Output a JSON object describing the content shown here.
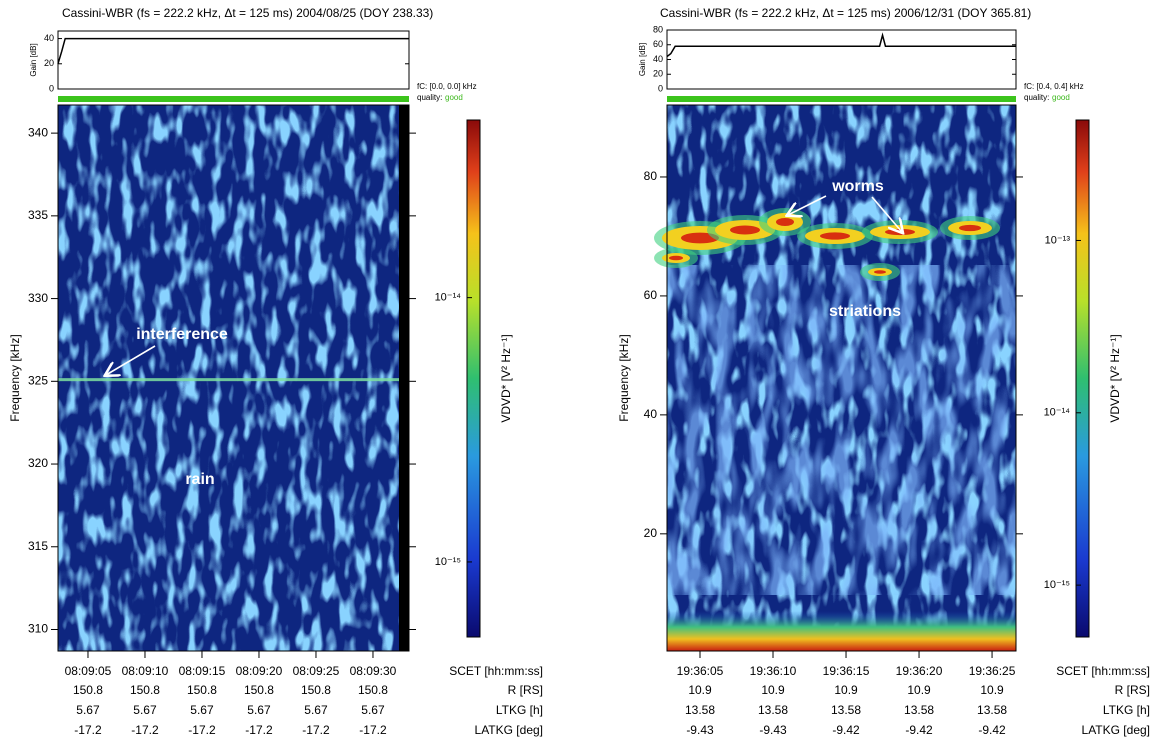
{
  "chart_data": [
    {
      "type": "spectrogram",
      "title": "Cassini-WBR (fs = 222.2 kHz, Δt = 125 ms)  2004/08/25 (DOY 238.33)",
      "gain": {
        "ylabel": "Gain [dB]",
        "ylim": [
          0,
          46
        ],
        "yticks": [
          0,
          20,
          40
        ],
        "x": [
          2.37,
          2.7,
          3.0,
          33.16
        ],
        "values": [
          20,
          30,
          40,
          40
        ]
      },
      "fc": "fC: [0.0, 0.0] kHz",
      "quality_label": "quality:",
      "quality": "good",
      "ylabel": "Frequency [kHz]",
      "ylim": [
        308.7,
        341.7
      ],
      "yticks": [
        310,
        315,
        320,
        325,
        330,
        335,
        340
      ],
      "xlabel": "SCET [hh:mm:ss]",
      "xlim": [
        2.37,
        33.16
      ],
      "xticks": [
        {
          "value": 5,
          "label": "08:09:05"
        },
        {
          "value": 10,
          "label": "08:09:10"
        },
        {
          "value": 15,
          "label": "08:09:15"
        },
        {
          "value": 20,
          "label": "08:09:20"
        },
        {
          "value": 25,
          "label": "08:09:25"
        },
        {
          "value": 30,
          "label": "08:09:30"
        }
      ],
      "ephemeris": [
        {
          "label": "R [RS]",
          "values": [
            150.8,
            150.8,
            150.8,
            150.8,
            150.8,
            150.8
          ]
        },
        {
          "label": "LTKG [h]",
          "values": [
            5.67,
            5.67,
            5.67,
            5.67,
            5.67,
            5.67
          ]
        },
        {
          "label": "LATKG [deg]",
          "values": [
            -17.2,
            -17.2,
            -17.2,
            -17.2,
            -17.2,
            -17.2
          ]
        }
      ],
      "colorbar": {
        "label": "VDVD* [V² Hz⁻¹]",
        "log": true,
        "lim": [
          5.2e-16,
          4.7e-14
        ],
        "ticks": [
          {
            "value": 1e-15,
            "label": "10⁻¹⁵"
          },
          {
            "value": 1e-14,
            "label": "10⁻¹⁴"
          }
        ]
      },
      "annotations": [
        {
          "text": "interference"
        },
        {
          "text": "rain"
        }
      ]
    },
    {
      "type": "spectrogram",
      "title": "Cassini-WBR (fs = 222.2 kHz, Δt = 125 ms)  2006/12/31 (DOY 365.81)",
      "gain": {
        "ylabel": "Gain [dB]",
        "ylim": [
          0,
          80
        ],
        "yticks": [
          0,
          20,
          40,
          60,
          80
        ],
        "x": [
          2.74,
          3.0,
          3.3,
          17.3,
          17.5,
          17.7,
          26.64
        ],
        "values": [
          44,
          48,
          58,
          58,
          73,
          58,
          58
        ]
      },
      "fc": "fC: [0.4, 0.4] kHz",
      "quality_label": "quality:",
      "quality": "good",
      "ylabel": "Frequency [kHz]",
      "ylim": [
        0.3,
        92.1
      ],
      "yticks": [
        20,
        40,
        60,
        80
      ],
      "xlabel": "SCET [hh:mm:ss]",
      "xlim": [
        2.74,
        26.64
      ],
      "xticks": [
        {
          "value": 5,
          "label": "19:36:05"
        },
        {
          "value": 10,
          "label": "19:36:10"
        },
        {
          "value": 15,
          "label": "19:36:15"
        },
        {
          "value": 20,
          "label": "19:36:20"
        },
        {
          "value": 25,
          "label": "19:36:25"
        }
      ],
      "ephemeris": [
        {
          "label": "R [RS]",
          "values": [
            10.9,
            10.9,
            10.9,
            10.9,
            10.9
          ]
        },
        {
          "label": "LTKG [h]",
          "values": [
            13.58,
            13.58,
            13.58,
            13.58,
            13.58
          ]
        },
        {
          "label": "LATKG [deg]",
          "values": [
            -9.43,
            -9.43,
            -9.42,
            -9.42,
            -9.42
          ]
        }
      ],
      "colorbar": {
        "label": "VDVD* [V² Hz⁻¹]",
        "log": true,
        "lim": [
          5e-16,
          5e-13
        ],
        "ticks": [
          {
            "value": 1e-15,
            "label": "10⁻¹⁵"
          },
          {
            "value": 1e-14,
            "label": "10⁻¹⁴"
          },
          {
            "value": 1e-13,
            "label": "10⁻¹³"
          }
        ]
      },
      "annotations": [
        {
          "text": "worms"
        },
        {
          "text": "striations"
        }
      ]
    }
  ]
}
